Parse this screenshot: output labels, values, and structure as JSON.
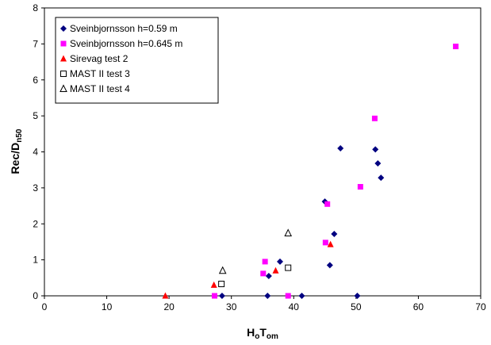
{
  "chart_data": {
    "type": "scatter",
    "xlabel": {
      "main": "H",
      "sub1": "o",
      "mid": "T",
      "sub2": "om"
    },
    "ylabel": {
      "main": "Rec/D",
      "sub": "n50"
    },
    "xlim": [
      0,
      70
    ],
    "ylim": [
      0,
      8
    ],
    "xticks": [
      "0",
      "10",
      "20",
      "30",
      "40",
      "50",
      "60",
      "70"
    ],
    "yticks": [
      "0",
      "1",
      "2",
      "3",
      "4",
      "5",
      "6",
      "7",
      "8"
    ],
    "grid": false,
    "legend_position": "top-left",
    "series": [
      {
        "name": "Sveinbjornsson h=0.59 m",
        "marker": "diamond",
        "color": "#000080",
        "points": [
          [
            28.5,
            0
          ],
          [
            35.8,
            0
          ],
          [
            41.3,
            0
          ],
          [
            50.2,
            0
          ],
          [
            36.0,
            0.55
          ],
          [
            37.8,
            0.95
          ],
          [
            45.8,
            0.85
          ],
          [
            46.5,
            1.72
          ],
          [
            45.0,
            2.62
          ],
          [
            47.5,
            4.1
          ],
          [
            53.1,
            4.07
          ],
          [
            53.5,
            3.68
          ],
          [
            54.0,
            3.28
          ]
        ]
      },
      {
        "name": "Sveinbjornsson h=0.645 m",
        "marker": "square",
        "color": "#FF00FF",
        "points": [
          [
            27.3,
            0
          ],
          [
            39.1,
            0
          ],
          [
            35.1,
            0.62
          ],
          [
            35.4,
            0.95
          ],
          [
            45.1,
            1.48
          ],
          [
            45.4,
            2.55
          ],
          [
            50.7,
            3.03
          ],
          [
            53.0,
            4.93
          ],
          [
            66.0,
            6.93
          ]
        ]
      },
      {
        "name": "Sirevag test 2",
        "marker": "triangle",
        "color": "#FF0000",
        "points": [
          [
            19.4,
            0
          ],
          [
            27.2,
            0.3
          ],
          [
            37.1,
            0.7
          ],
          [
            45.9,
            1.43
          ]
        ]
      },
      {
        "name": "MAST II test 3",
        "marker": "open-square",
        "color": "#000000",
        "points": [
          [
            28.4,
            0.33
          ],
          [
            39.1,
            0.78
          ]
        ]
      },
      {
        "name": "MAST II test 4",
        "marker": "open-triangle",
        "color": "#000000",
        "points": [
          [
            28.6,
            0.7
          ],
          [
            39.1,
            1.74
          ]
        ]
      }
    ]
  }
}
